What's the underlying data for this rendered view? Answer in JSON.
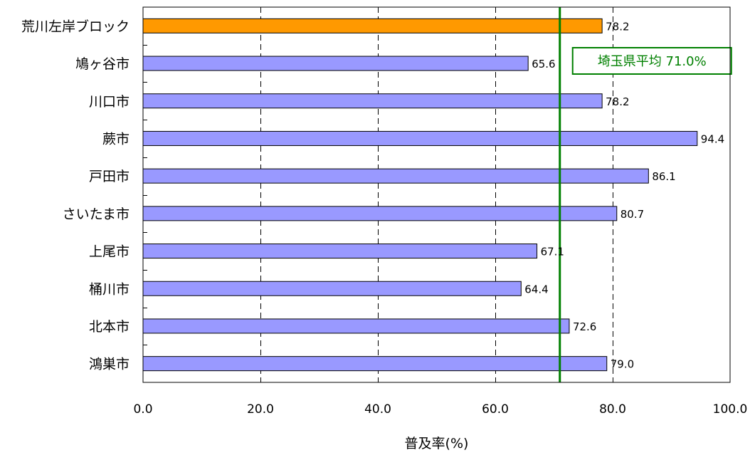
{
  "chart_data": {
    "type": "bar",
    "orientation": "horizontal",
    "categories": [
      "荒川左岸ブロック",
      "鳩ヶ谷市",
      "川口市",
      "蕨市",
      "戸田市",
      "さいたま市",
      "上尾市",
      "桶川市",
      "北本市",
      "鴻巣市"
    ],
    "values": [
      78.2,
      65.6,
      78.2,
      94.4,
      86.1,
      80.7,
      67.1,
      64.4,
      72.6,
      79.0
    ],
    "value_labels": [
      "78.2",
      "65.6",
      "78.2",
      "94.4",
      "86.1",
      "80.7",
      "67.1",
      "64.4",
      "72.6",
      "79.0"
    ],
    "highlight_index": 0,
    "highlight_color": "#ff9900",
    "bar_color": "#9999ff",
    "xlabel": "普及率(%)",
    "xlim": [
      0,
      100
    ],
    "xticks": [
      0,
      20,
      40,
      60,
      80,
      100
    ],
    "xtick_labels": [
      "0.0",
      "20.0",
      "40.0",
      "60.0",
      "80.0",
      "100.0"
    ],
    "grid": "vertical dashed",
    "reference_line": {
      "value": 71.0,
      "label": "埼玉県平均 71.0%",
      "color": "#008000"
    }
  }
}
